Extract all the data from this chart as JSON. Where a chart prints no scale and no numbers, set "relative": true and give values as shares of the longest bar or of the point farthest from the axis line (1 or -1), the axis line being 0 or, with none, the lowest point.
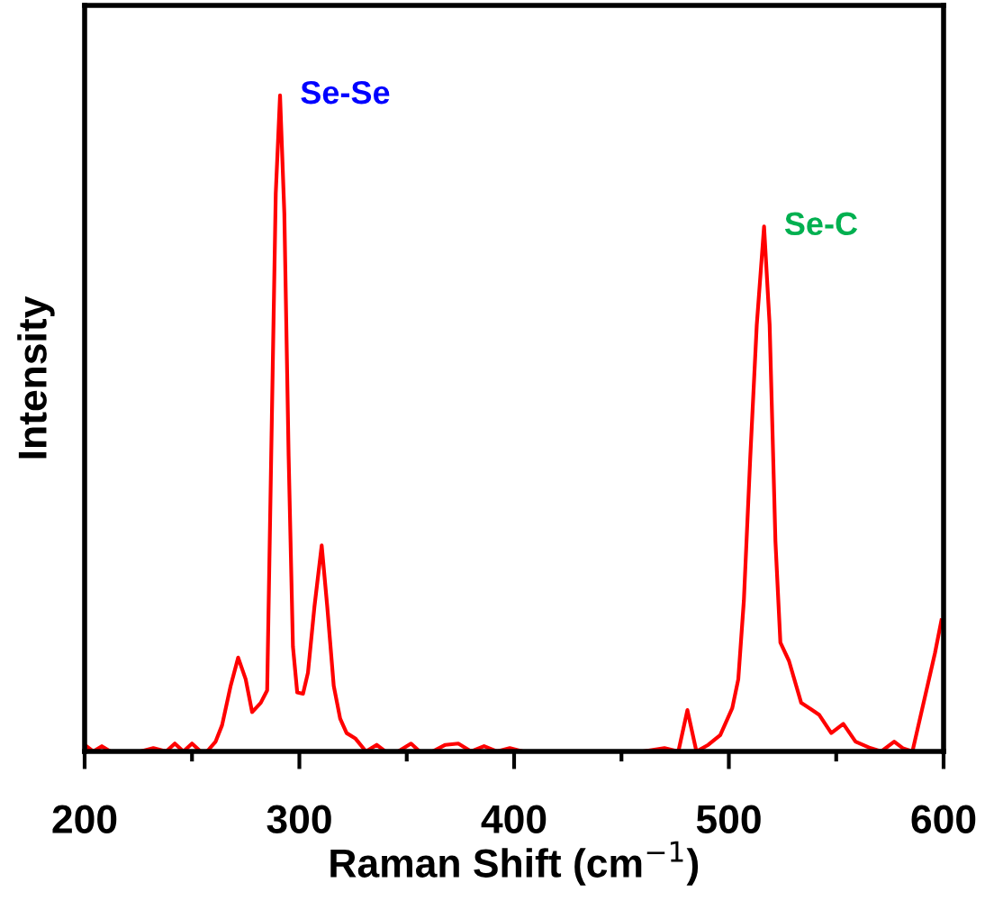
{
  "chart_data": {
    "type": "line",
    "relative": true,
    "xlabel": "Raman Shift (cm$^{−1}$)",
    "ylabel": "Intensity",
    "xlim": [
      200,
      600
    ],
    "xticks": [
      200,
      {
        "value": 250,
        "label": null
      },
      300,
      {
        "value": 350,
        "label": null
      },
      400,
      {
        "value": 450,
        "label": null
      },
      500,
      {
        "value": 550,
        "label": null
      },
      600
    ],
    "tick_labels": "x",
    "grid": false,
    "legend": false,
    "marker": "none",
    "line_style": "solid",
    "series": [
      {
        "color": "#ff0000",
        "x": [
          200,
          204,
          208,
          212,
          218,
          226,
          232,
          238,
          242,
          246,
          250,
          254,
          257,
          261,
          264,
          268,
          271.5,
          275,
          278,
          282,
          285,
          287.2,
          289,
          291,
          293,
          295,
          297,
          299,
          301.7,
          304,
          307,
          310.4,
          313,
          316,
          319,
          322,
          326,
          331,
          336,
          340,
          346,
          352,
          356,
          362,
          368,
          374,
          380,
          386,
          392,
          398,
          404,
          410,
          420,
          430,
          440,
          450,
          460,
          470,
          476.5,
          480.7,
          484.9,
          490.4,
          496,
          501.6,
          504.4,
          507,
          510,
          513,
          516.4,
          519,
          521.7,
          524,
          528,
          533.7,
          538,
          542,
          547.7,
          553.3,
          559,
          566,
          571,
          577,
          581,
          585.5,
          592.5,
          596,
          599
        ],
        "values": [
          0.01,
          0.0,
          0.008,
          0.0,
          0.0,
          0.0,
          0.005,
          0.0,
          0.012,
          0.0,
          0.012,
          0.0,
          0.0,
          0.015,
          0.04,
          0.1,
          0.143,
          0.11,
          0.06,
          0.074,
          0.093,
          0.51,
          0.85,
          1.0,
          0.82,
          0.45,
          0.16,
          0.09,
          0.088,
          0.12,
          0.22,
          0.314,
          0.22,
          0.1,
          0.05,
          0.028,
          0.02,
          0.0,
          0.01,
          0.0,
          0.0,
          0.012,
          0.0,
          0.0,
          0.01,
          0.012,
          0.0,
          0.008,
          0.0,
          0.005,
          0.0,
          0.0,
          0.0,
          0.0,
          0.0,
          0.0,
          0.0,
          0.005,
          0.0,
          0.063,
          0.0,
          0.01,
          0.025,
          0.066,
          0.11,
          0.23,
          0.45,
          0.65,
          0.8,
          0.65,
          0.32,
          0.166,
          0.138,
          0.074,
          0.065,
          0.056,
          0.028,
          0.042,
          0.015,
          0.005,
          0.0,
          0.015,
          0.005,
          0.0,
          0.1,
          0.15,
          0.2
        ]
      }
    ],
    "annotations": [
      {
        "text": "Se-Se",
        "x": 291,
        "y": 1.0
      },
      {
        "text": "Se-C",
        "x": 516.4,
        "y": 0.8
      }
    ]
  }
}
